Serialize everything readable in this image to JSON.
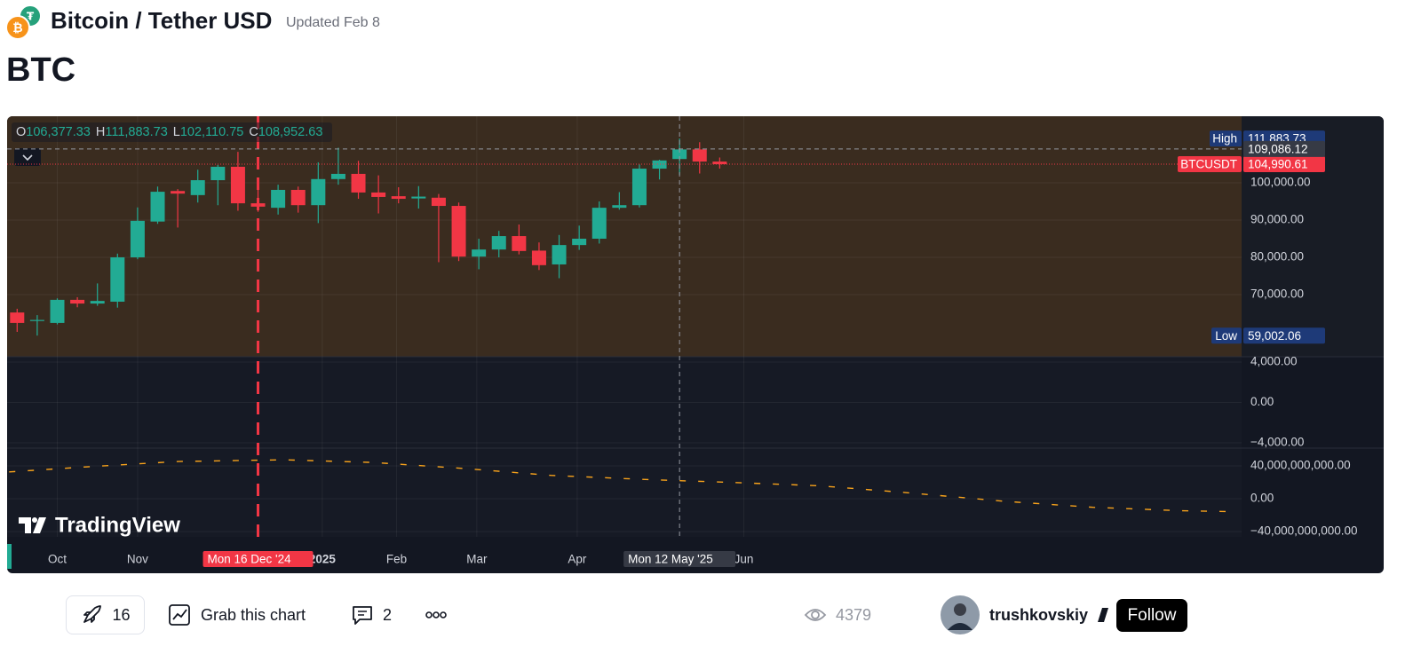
{
  "header": {
    "symbol": "Bitcoin / Tether USD",
    "updated": "Updated Feb 8",
    "title": "BTC"
  },
  "chart_data": {
    "type": "candlestick",
    "ohlc_legend": [
      {
        "key": "O",
        "value": 106377.33,
        "label": "106,377.33"
      },
      {
        "key": "H",
        "value": 111883.73,
        "label": "111,883.73"
      },
      {
        "key": "L",
        "value": 102110.75,
        "label": "102,110.75"
      },
      {
        "key": "C",
        "value": 108952.63,
        "label": "108,952.63"
      }
    ],
    "series": [
      {
        "name": "BTCUSDT",
        "up_color": "#22ab94",
        "down_color": "#f23645",
        "open": [
          65200,
          63000,
          62400,
          68600,
          67600,
          68100,
          80000,
          89600,
          97800,
          96700,
          100700,
          104300,
          94500,
          93300,
          98100,
          94000,
          101000,
          102400,
          97400,
          96400,
          95800,
          96000,
          93800,
          80200,
          82100,
          85700,
          81800,
          78100,
          83300,
          85000,
          93300,
          94000,
          103800,
          106377.33,
          108950,
          105700
        ],
        "high": [
          66200,
          64500,
          69000,
          69300,
          73000,
          81000,
          93400,
          99000,
          98300,
          103500,
          104800,
          108300,
          99500,
          99500,
          99000,
          105500,
          109400,
          105900,
          102000,
          98800,
          99100,
          97000,
          94700,
          85000,
          87100,
          88800,
          84000,
          86000,
          88500,
          95000,
          97500,
          104900,
          106200,
          111883.73,
          110900,
          106800
        ],
        "low": [
          60000,
          59002.06,
          62000,
          66600,
          67000,
          66500,
          79500,
          89000,
          88000,
          94700,
          94000,
          92500,
          92200,
          91500,
          92000,
          89200,
          99500,
          95700,
          91800,
          94500,
          93100,
          78700,
          79000,
          76800,
          80000,
          80800,
          76600,
          74400,
          82000,
          83700,
          92800,
          93400,
          100900,
          102110.75,
          102500,
          103800
        ],
        "close": [
          62400,
          63200,
          68600,
          67600,
          68300,
          80000,
          89800,
          97600,
          97100,
          100700,
          104300,
          94500,
          93600,
          98100,
          94000,
          101000,
          102400,
          97400,
          96200,
          95700,
          96300,
          93800,
          80200,
          82100,
          85700,
          81700,
          77900,
          83300,
          85000,
          93300,
          94000,
          103800,
          106000,
          108952.63,
          105700,
          104990.61
        ]
      }
    ],
    "xlim": [
      -0.5,
      61
    ],
    "xticks": [
      {
        "value": 2,
        "label": "Oct"
      },
      {
        "value": 6,
        "label": "Nov"
      },
      {
        "value": 15.2,
        "label": "2025"
      },
      {
        "value": 18.9,
        "label": "Feb"
      },
      {
        "value": 22.9,
        "label": "Mar"
      },
      {
        "value": 27.9,
        "label": "Apr"
      },
      {
        "value": 36.2,
        "label": "Jun"
      }
    ],
    "ylim": [
      53333,
      117857
    ],
    "yticks": [
      {
        "value": 100000,
        "label": "100,000.00"
      },
      {
        "value": 90000,
        "label": "90,000.00"
      },
      {
        "value": 80000,
        "label": "80,000.00"
      },
      {
        "value": 70000,
        "label": "70,000.00"
      }
    ],
    "high_marker": {
      "label": "High",
      "value": 111883.73,
      "value_label": "111,883.73"
    },
    "low_marker": {
      "label": "Low",
      "value": 59002.06,
      "value_label": "59,002.06"
    },
    "last_price": {
      "value": 104990.61,
      "value_label": "104,990.61"
    },
    "crosshair": {
      "price": 109086.12,
      "price_label": "109,086.12",
      "x": 33,
      "date_label": "Mon 12 May '25"
    },
    "drawing_line": {
      "x": 12,
      "date_label": "Mon 16 Dec '24"
    },
    "panels": [
      {
        "ylim": [
          -4527,
          4527
        ],
        "yticks": [
          {
            "value": 4000,
            "label": "4,000.00"
          },
          {
            "value": 0,
            "label": "0.00"
          },
          {
            "value": -4000,
            "label": "−4,000.00"
          }
        ]
      },
      {
        "ylim": [
          -46500000000,
          61600000000
        ],
        "yticks": [
          {
            "value": 40000000000,
            "label": "40,000,000,000.00"
          },
          {
            "value": 0,
            "label": "0.00"
          },
          {
            "value": -40000000000,
            "label": "−40,000,000,000.00"
          }
        ],
        "x": [
          -0.4,
          3.6,
          8,
          13.3,
          17.7,
          22.2,
          26.6,
          31.5,
          35.4,
          39.9,
          44.3,
          49.2,
          53.6,
          58,
          60.5
        ],
        "series": [
          {
            "color": "#f7a21b",
            "values": [
              32600000000,
              39000000000,
              45300000000,
              47400000000,
              44200000000,
              36900000000,
              28400000000,
              23200000000,
              20000000000,
              15800000000,
              7400000000,
              -3200000000,
              -10500000000,
              -14700000000,
              -15800000000
            ]
          }
        ]
      }
    ],
    "watermark": "TradingView"
  },
  "footer": {
    "boosts": 16,
    "grab": "Grab this chart",
    "comments": 2,
    "views": 4379,
    "author": "trushkovskiy",
    "follow": "Follow"
  }
}
